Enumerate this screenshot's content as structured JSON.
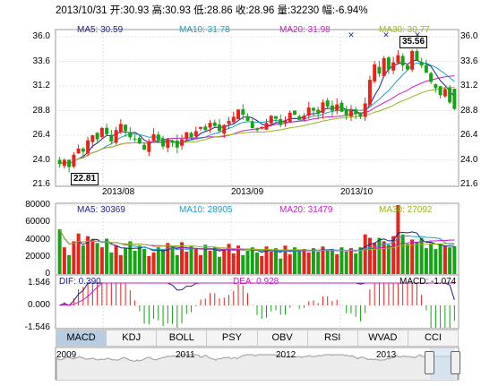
{
  "header": {
    "date": "2013/10/31",
    "open_label": "开:",
    "open": "30.93",
    "high_label": "高:",
    "high": "30.93",
    "low_label": "低:",
    "low": "28.86",
    "close_label": "收:",
    "close": "28.96",
    "volume_label": "量:",
    "volume": "32230",
    "change_label": "幅:",
    "change": "-6.94%"
  },
  "price_panel": {
    "ma5": "MA5: 30.59",
    "ma10": "MA10: 31.78",
    "ma20": "MA20: 31.98",
    "ma30": "MA30: 30.77",
    "y_ticks": [
      "36.0",
      "33.6",
      "31.2",
      "28.8",
      "26.4",
      "24.0",
      "21.6"
    ],
    "dates": [
      "2013/08",
      "2013/09",
      "2013/10"
    ],
    "high_annotation": "35.56",
    "low_annotation": "22.81"
  },
  "volume_panel": {
    "ma5": "MA5: 30369",
    "ma10": "MA10: 28905",
    "ma20": "MA20: 31479",
    "ma30": "MA30: 27092",
    "y_ticks": [
      "80000",
      "60000",
      "40000",
      "20000",
      "0"
    ]
  },
  "macd_panel": {
    "dif": "DIF: 0.390",
    "dea": "DEA: 0.928",
    "macd": "MACD: -1.074",
    "y_ticks": [
      "1.546",
      "0.000",
      "-1.546"
    ]
  },
  "tabs": [
    "MACD",
    "KDJ",
    "BOLL",
    "PSY",
    "OBV",
    "RSI",
    "WVAD",
    "CCI"
  ],
  "overview": {
    "years": [
      "2009",
      "2011",
      "2012",
      "2013"
    ]
  },
  "colors": {
    "up": "#e8221c",
    "down": "#16a316",
    "ma5": "#1e1e8c",
    "ma10": "#18a0c8",
    "ma20": "#c81ec8",
    "ma30": "#9ab41e"
  },
  "chart_data": [
    {
      "type": "candlestick",
      "title": "",
      "y_ticks": [
        21.6,
        24.0,
        26.4,
        28.8,
        31.2,
        33.6,
        36.0
      ],
      "ylim": [
        21.6,
        36.0
      ],
      "x_ticks": [
        "2013/08",
        "2013/09",
        "2013/10"
      ],
      "last_candle": {
        "date": "2013/10/31",
        "open": 30.93,
        "high": 30.93,
        "low": 28.86,
        "close": 28.96
      },
      "annotated_high": 35.56,
      "annotated_low": 22.81,
      "closes": [
        23.6,
        24.0,
        23.3,
        24.5,
        25.1,
        24.8,
        25.9,
        26.4,
        26.0,
        27.1,
        26.5,
        25.8,
        26.9,
        27.5,
        26.8,
        26.2,
        26.0,
        25.6,
        25.0,
        25.8,
        26.5,
        25.9,
        25.3,
        26.0,
        25.7,
        25.2,
        26.0,
        26.7,
        26.2,
        26.8,
        27.2,
        26.9,
        27.6,
        27.3,
        26.8,
        27.4,
        27.8,
        28.2,
        28.9,
        28.4,
        27.8,
        27.1,
        26.9,
        27.2,
        27.6,
        28.3,
        28.0,
        27.4,
        27.8,
        28.6,
        28.4,
        27.9,
        28.3,
        29.1,
        28.8,
        28.5,
        29.6,
        29.2,
        28.8,
        29.4,
        28.7,
        28.3,
        28.9,
        28.5,
        28.2,
        29.5,
        31.8,
        33.3,
        32.4,
        33.9,
        32.8,
        33.5,
        34.2,
        33.2,
        32.8,
        34.6,
        33.7,
        33.2,
        32.5,
        31.6,
        31.0,
        30.3,
        30.9,
        29.6,
        28.96
      ]
    },
    {
      "type": "bar",
      "title": "",
      "y_ticks": [
        0,
        20000,
        40000,
        60000,
        80000
      ],
      "ylim": [
        0,
        80000
      ],
      "last_value": 32230,
      "values": [
        52000,
        31000,
        22000,
        38000,
        47000,
        33000,
        44000,
        40000,
        36000,
        31000,
        41000,
        25000,
        33000,
        22000,
        30000,
        38000,
        27000,
        33000,
        29000,
        21000,
        25000,
        31000,
        28000,
        36000,
        32000,
        22000,
        37000,
        26000,
        33000,
        29000,
        22000,
        34000,
        27000,
        31000,
        20000,
        29000,
        35000,
        24000,
        33000,
        22000,
        27000,
        31000,
        25000,
        21000,
        32000,
        26000,
        30000,
        18000,
        33000,
        23000,
        31000,
        27000,
        29000,
        25000,
        30000,
        26000,
        32000,
        28000,
        27000,
        23000,
        31000,
        26000,
        30000,
        24000,
        31000,
        46000,
        42000,
        36000,
        42000,
        38000,
        34000,
        44000,
        80000,
        46000,
        35000,
        40000,
        37000,
        42000,
        30000,
        36000,
        29000,
        34000,
        33000,
        31000,
        32230
      ]
    },
    {
      "type": "macd",
      "title": "",
      "y_ticks": [
        -1.546,
        0.0,
        1.546
      ],
      "ylim": [
        -1.546,
        1.546
      ],
      "dif_last": 0.39,
      "dea_last": 0.928,
      "macd_last": -1.074
    }
  ]
}
